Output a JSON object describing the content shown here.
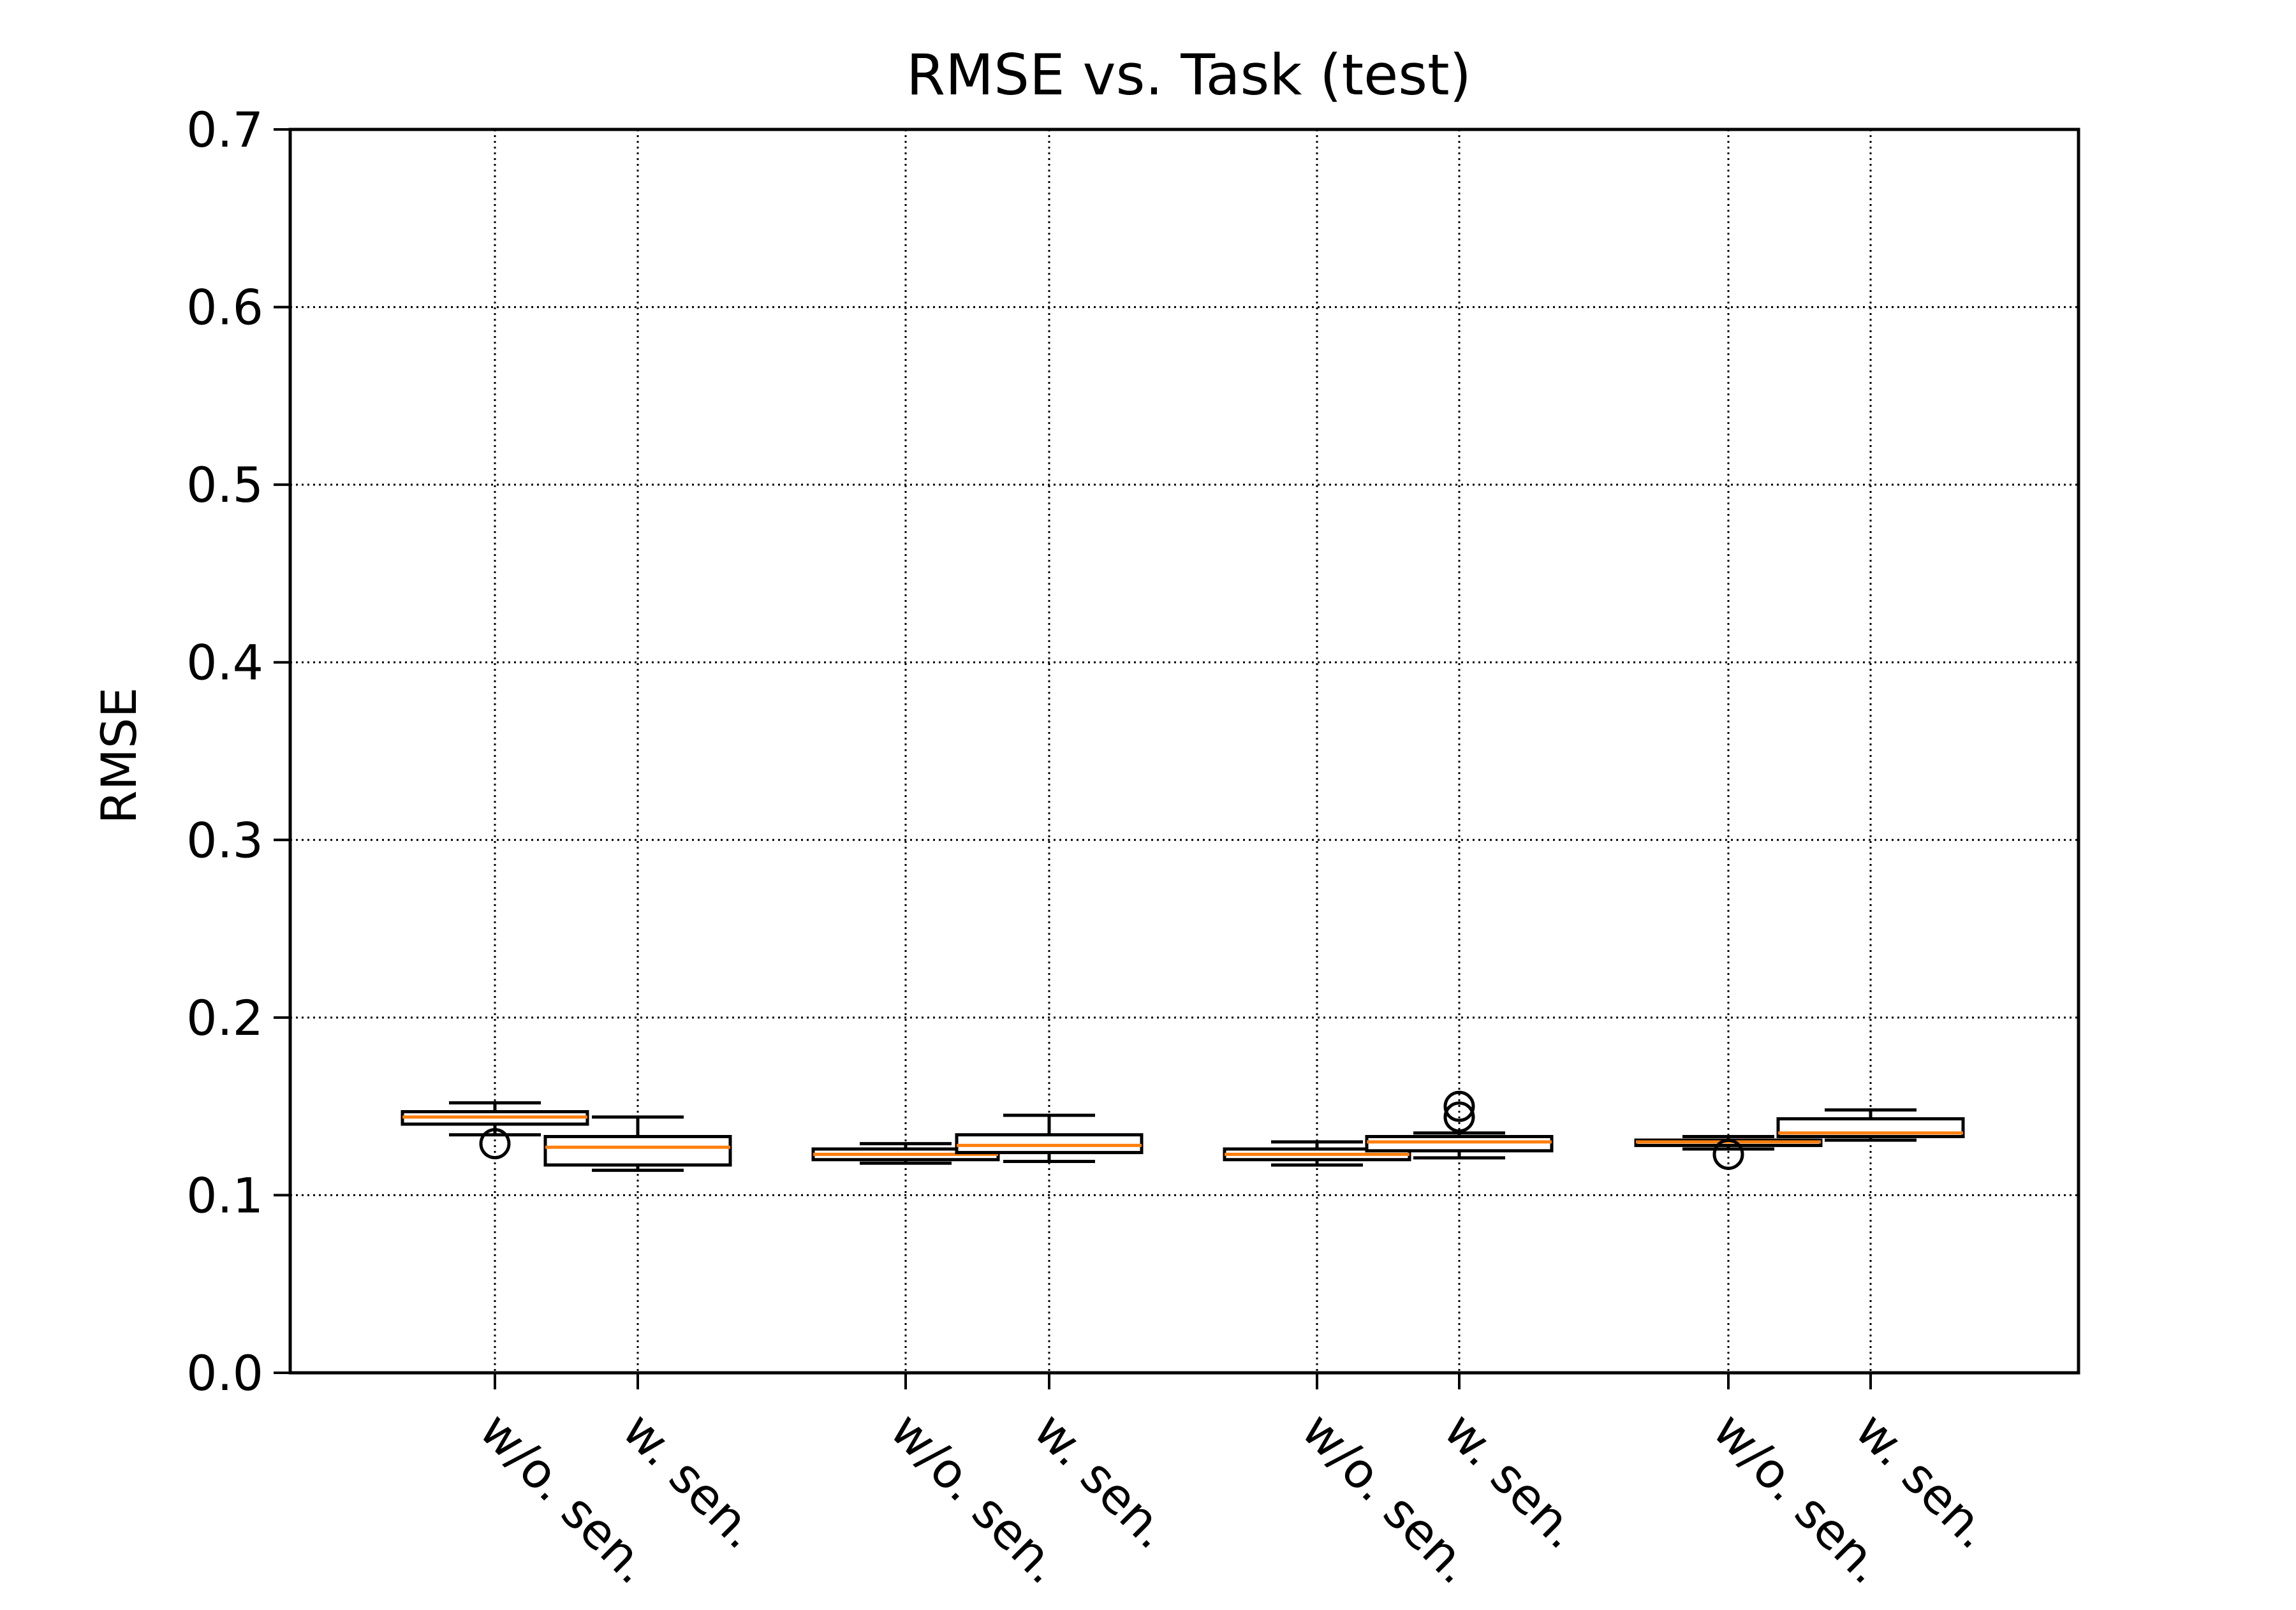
{
  "chart_data": {
    "type": "box",
    "title": "RMSE vs. Task (test)",
    "xlabel": "",
    "ylabel": "RMSE",
    "ylim": [
      0.0,
      0.7
    ],
    "yticks": [
      "0.0",
      "0.1",
      "0.2",
      "0.3",
      "0.4",
      "0.5",
      "0.6",
      "0.7"
    ],
    "grid": true,
    "categories": [
      "w/o. sen.",
      "w. sen.",
      "w/o. sen.",
      "w. sen.",
      "w/o. sen.",
      "w. sen.",
      "w/o. sen.",
      "w. sen."
    ],
    "boxes": [
      {
        "label": "w/o. sen.",
        "whislo": 0.134,
        "q1": 0.14,
        "median": 0.144,
        "q3": 0.147,
        "whishi": 0.152,
        "fliers": [
          0.129
        ]
      },
      {
        "label": "w. sen.",
        "whislo": 0.114,
        "q1": 0.117,
        "median": 0.127,
        "q3": 0.133,
        "whishi": 0.144,
        "fliers": []
      },
      {
        "label": "w/o. sen.",
        "whislo": 0.118,
        "q1": 0.12,
        "median": 0.123,
        "q3": 0.126,
        "whishi": 0.129,
        "fliers": []
      },
      {
        "label": "w. sen.",
        "whislo": 0.119,
        "q1": 0.124,
        "median": 0.128,
        "q3": 0.134,
        "whishi": 0.145,
        "fliers": []
      },
      {
        "label": "w/o. sen.",
        "whislo": 0.117,
        "q1": 0.12,
        "median": 0.123,
        "q3": 0.126,
        "whishi": 0.13,
        "fliers": []
      },
      {
        "label": "w. sen.",
        "whislo": 0.121,
        "q1": 0.125,
        "median": 0.13,
        "q3": 0.133,
        "whishi": 0.135,
        "fliers": [
          0.144,
          0.15
        ]
      },
      {
        "label": "w/o. sen.",
        "whislo": 0.126,
        "q1": 0.128,
        "median": 0.13,
        "q3": 0.131,
        "whishi": 0.133,
        "fliers": [
          0.123
        ]
      },
      {
        "label": "w. sen.",
        "whislo": 0.131,
        "q1": 0.133,
        "median": 0.135,
        "q3": 0.143,
        "whishi": 0.148,
        "fliers": []
      }
    ],
    "colors": {
      "box": "#000000",
      "median": "#ff7f0e",
      "grid": "#000000"
    }
  }
}
